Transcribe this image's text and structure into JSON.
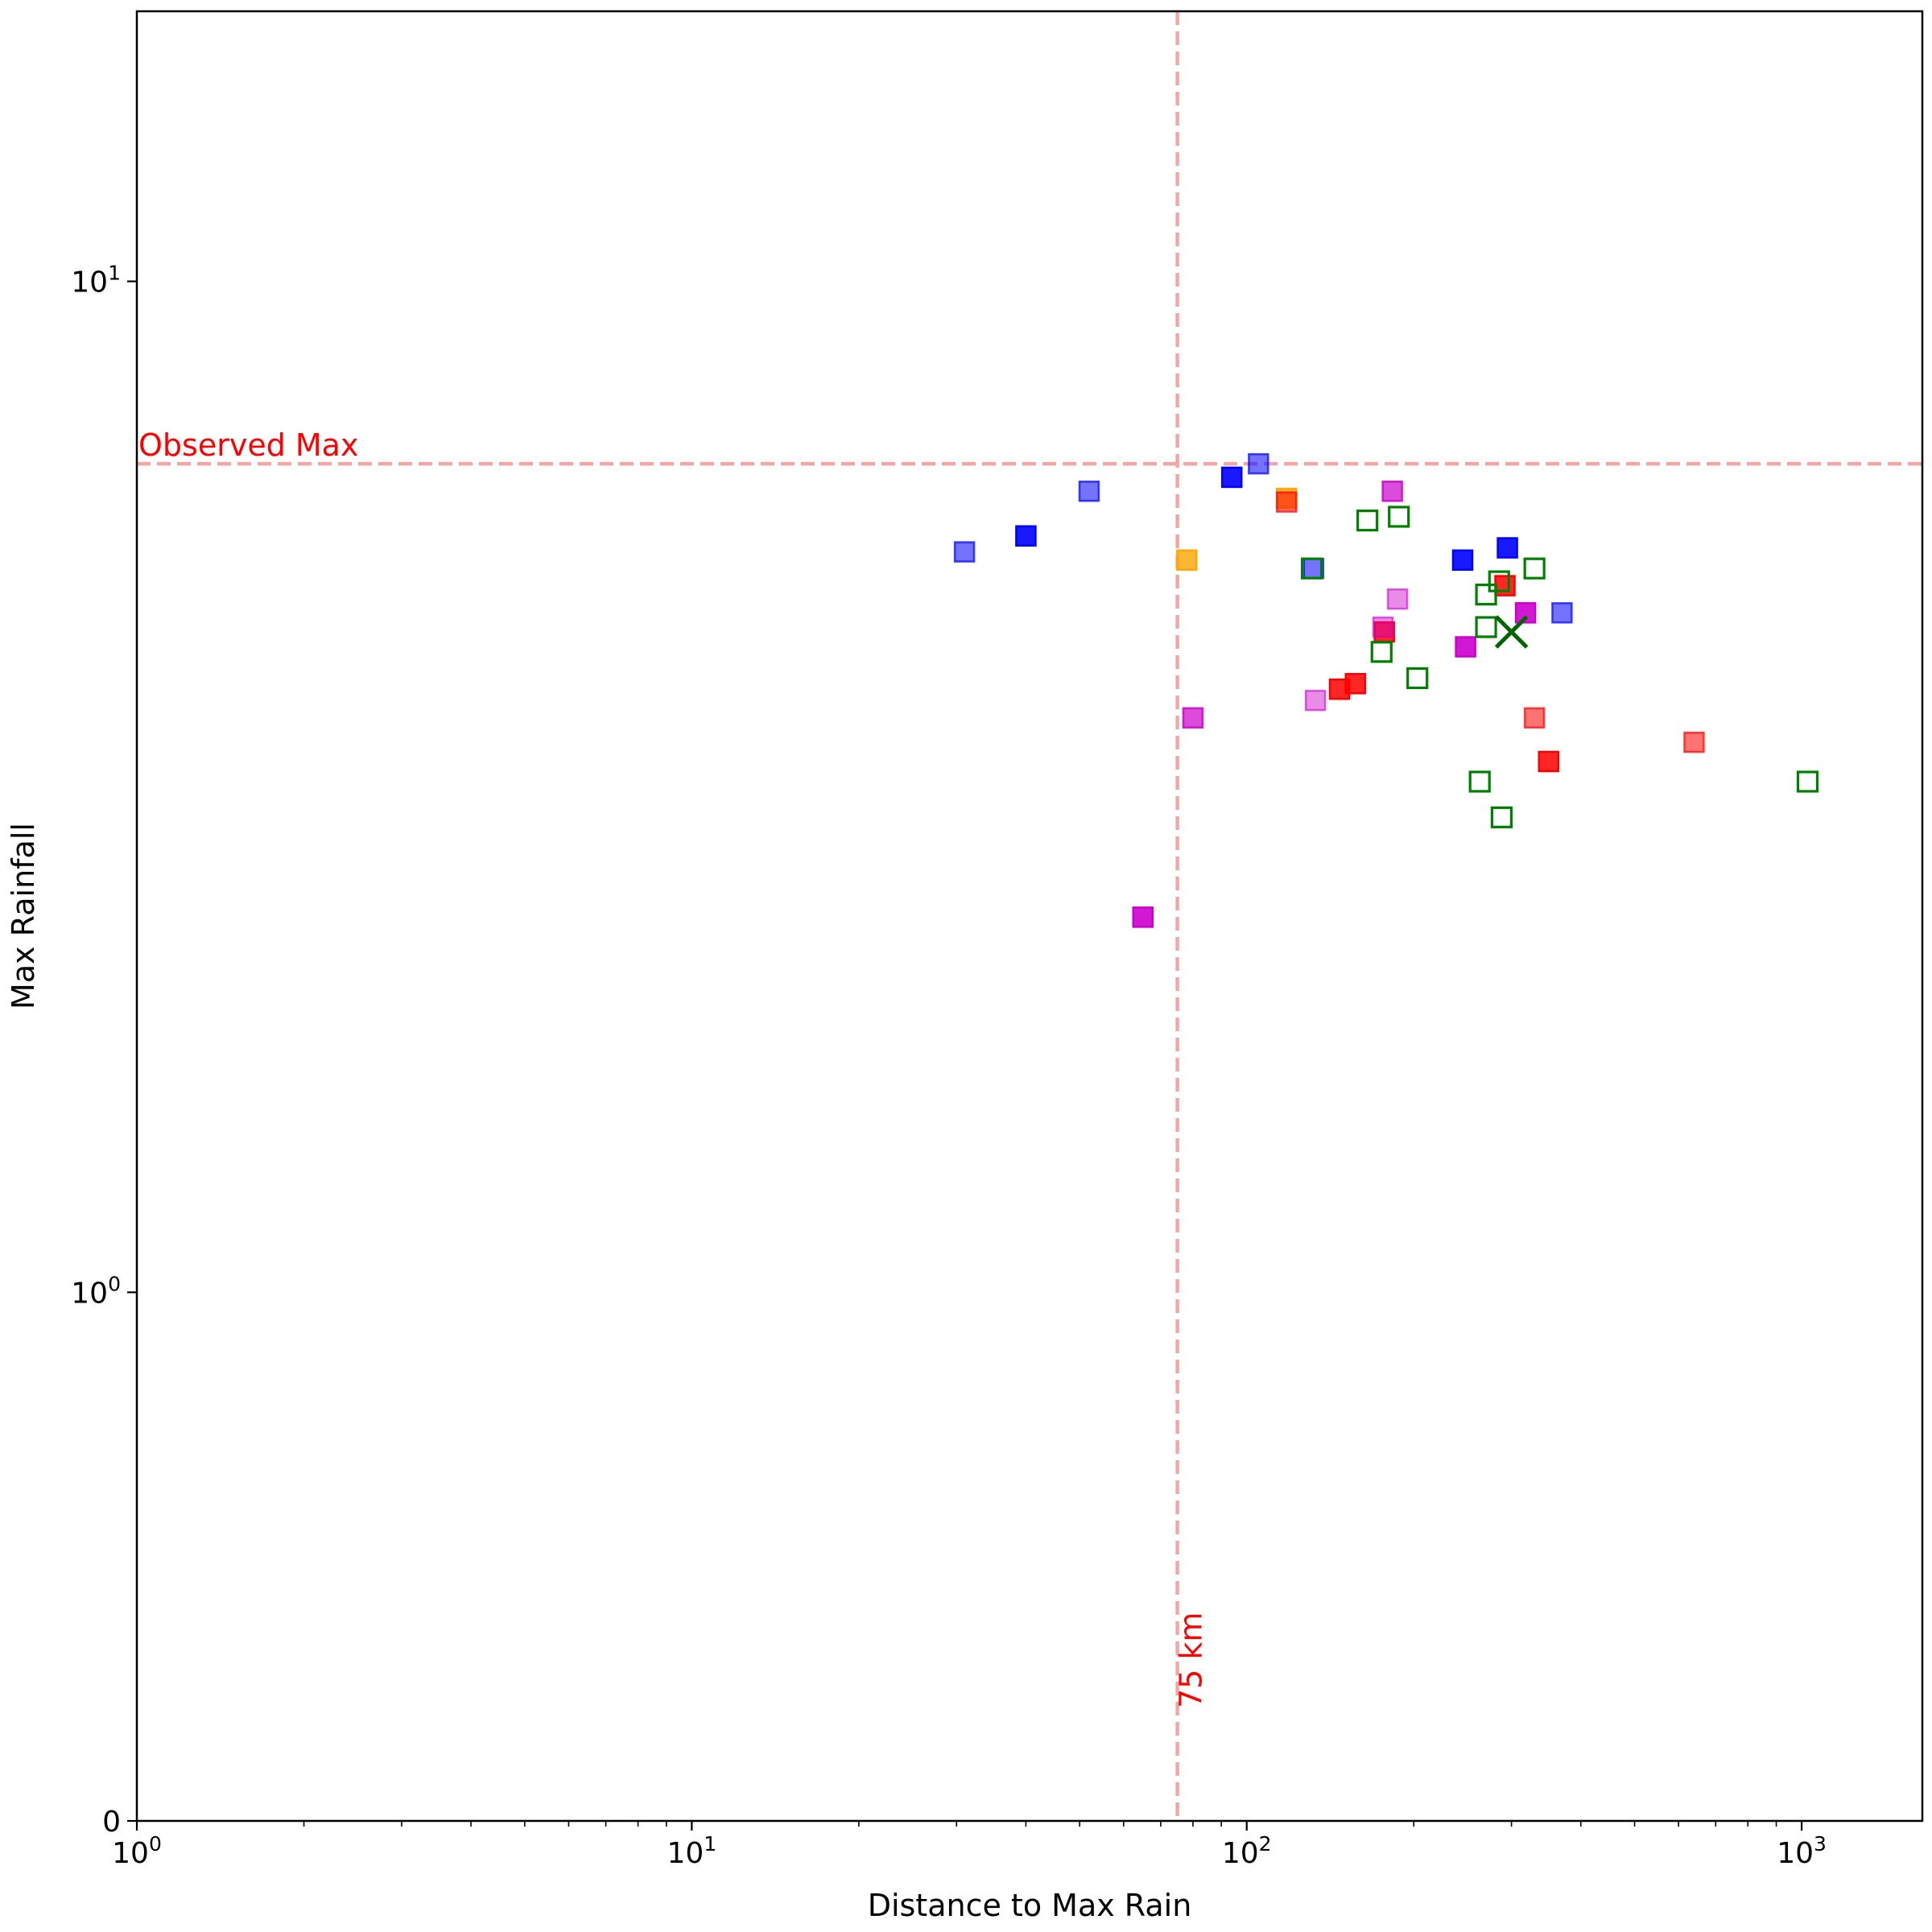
{
  "chart_data": {
    "type": "scatter",
    "title": "",
    "xlabel": "Distance to Max Rain",
    "ylabel": "Max Rainfall",
    "x_scale": "log",
    "y_scale": "log",
    "xlim": [
      1,
      1650
    ],
    "ylim": [
      0.3,
      18.5
    ],
    "grid": false,
    "x_ticks": [
      {
        "value": 1,
        "base": "10",
        "exp": "0"
      },
      {
        "value": 10,
        "base": "10",
        "exp": "1"
      },
      {
        "value": 100,
        "base": "10",
        "exp": "2"
      },
      {
        "value": 1000,
        "base": "10",
        "exp": "3"
      }
    ],
    "y_ticks": [
      {
        "value": 0.3,
        "base": "0",
        "exp": ""
      },
      {
        "value": 1,
        "base": "10",
        "exp": "0"
      },
      {
        "value": 10,
        "base": "10",
        "exp": "1"
      }
    ],
    "reference_lines": {
      "horizontal": {
        "y": 6.6,
        "label": "Observed Max",
        "color": "#f4a6a6"
      },
      "vertical": {
        "x": 75,
        "label": "75 km",
        "color": "#f4a6a6"
      }
    },
    "label_color": "#ff0000",
    "marker_x": {
      "x": 300,
      "y": 4.5,
      "color": "#006400"
    },
    "series": [
      {
        "color": "#0000ff",
        "alpha": 0.55,
        "points": [
          [
            31,
            5.4
          ],
          [
            52,
            6.2
          ],
          [
            105,
            6.6
          ],
          [
            132,
            5.2
          ],
          [
            370,
            4.7
          ]
        ]
      },
      {
        "color": "#0000ff",
        "alpha": 0.9,
        "points": [
          [
            40,
            5.6
          ],
          [
            94,
            6.4
          ],
          [
            245,
            5.3
          ],
          [
            295,
            5.45
          ]
        ]
      },
      {
        "color": "#ffa500",
        "alpha": 0.8,
        "points": [
          [
            78,
            5.3
          ],
          [
            118,
            6.1
          ]
        ]
      },
      {
        "color": "#ff0000",
        "alpha": 0.55,
        "points": [
          [
            118,
            6.05
          ],
          [
            330,
            3.7
          ],
          [
            640,
            3.5
          ]
        ]
      },
      {
        "color": "#ff0000",
        "alpha": 0.85,
        "points": [
          [
            147,
            3.95
          ],
          [
            157,
            4.0
          ],
          [
            177,
            4.5
          ],
          [
            292,
            5.0
          ],
          [
            350,
            3.35
          ]
        ]
      },
      {
        "color": "#cc00cc",
        "alpha": 0.45,
        "points": [
          [
            133,
            3.85
          ],
          [
            187,
            4.85
          ],
          [
            176,
            4.55
          ]
        ]
      },
      {
        "color": "#cc00cc",
        "alpha": 0.7,
        "points": [
          [
            80,
            3.7
          ],
          [
            183,
            6.2
          ]
        ]
      },
      {
        "color": "#cc00cc",
        "alpha": 0.9,
        "points": [
          [
            65,
            2.35
          ],
          [
            248,
            4.35
          ],
          [
            318,
            4.7
          ]
        ]
      },
      {
        "color": "#008000",
        "alpha": 1.0,
        "hollow": true,
        "points": [
          [
            131,
            5.2
          ],
          [
            165,
            5.8
          ],
          [
            188,
            5.85
          ],
          [
            270,
            4.9
          ],
          [
            285,
            5.05
          ],
          [
            330,
            5.2
          ],
          [
            270,
            4.55
          ],
          [
            175,
            4.3
          ],
          [
            203,
            4.05
          ],
          [
            263,
            3.2
          ],
          [
            288,
            2.95
          ],
          [
            1025,
            3.2
          ]
        ]
      }
    ]
  }
}
